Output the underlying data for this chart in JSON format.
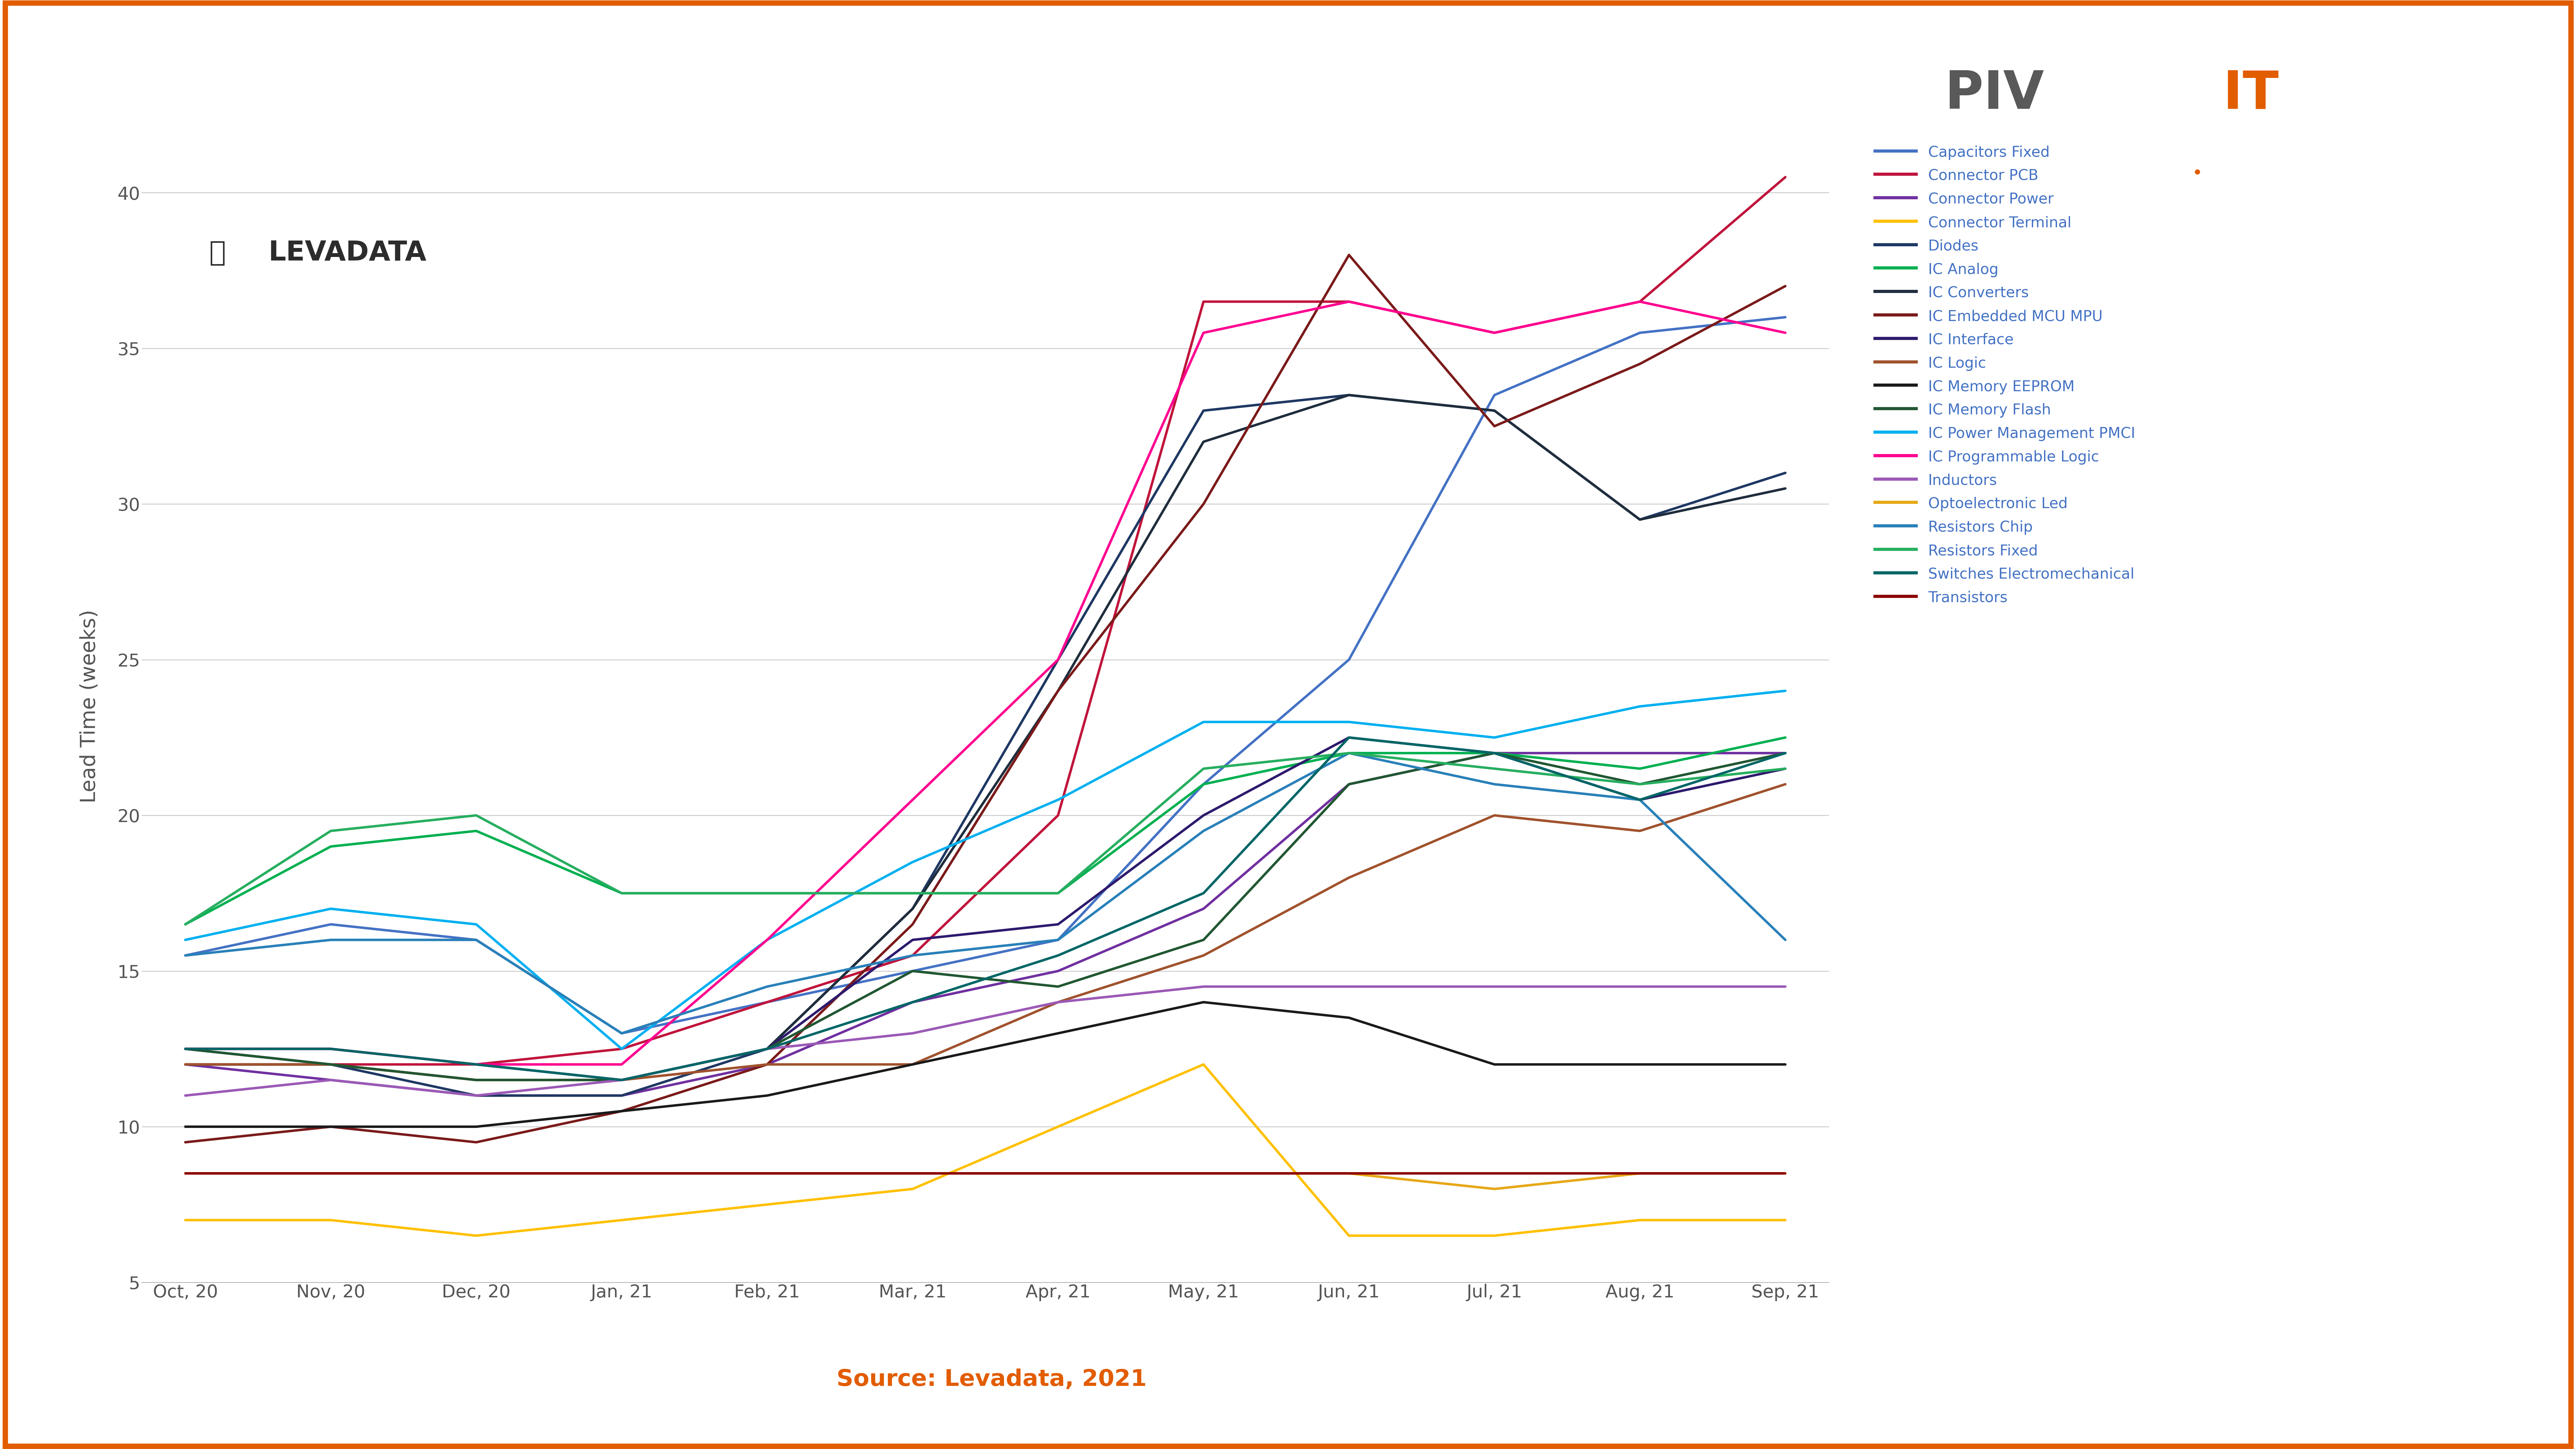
{
  "x_labels": [
    "Oct, 20",
    "Nov, 20",
    "Dec, 20",
    "Jan, 21",
    "Feb, 21",
    "Mar, 21",
    "Apr, 21",
    "May, 21",
    "Jun, 21",
    "Jul, 21",
    "Aug, 21",
    "Sep, 21"
  ],
  "ylabel": "Lead Time (weeks)",
  "ylim": [
    5,
    42
  ],
  "yticks": [
    5,
    10,
    15,
    20,
    25,
    30,
    35,
    40
  ],
  "source_text": "Source: Levadata, 2021",
  "series": [
    {
      "label": "Capacitors Fixed",
      "color": "#4472C4",
      "values": [
        15.5,
        16.5,
        16.0,
        13.0,
        14.0,
        15.0,
        16.0,
        21.0,
        25.0,
        33.5,
        35.5,
        36.0
      ]
    },
    {
      "label": "Connector PCB",
      "color": "#C0143C",
      "values": [
        12.0,
        12.0,
        12.0,
        12.5,
        14.0,
        15.5,
        20.0,
        36.5,
        36.5,
        35.5,
        36.5,
        40.5
      ]
    },
    {
      "label": "Connector Power",
      "color": "#7030A0",
      "values": [
        12.0,
        11.5,
        11.0,
        11.0,
        12.0,
        14.0,
        15.0,
        17.0,
        21.0,
        22.0,
        22.0,
        22.0
      ]
    },
    {
      "label": "Connector Terminal",
      "color": "#FFC000",
      "values": [
        7.0,
        7.0,
        6.5,
        7.0,
        7.5,
        8.0,
        10.0,
        12.0,
        6.5,
        6.5,
        7.0,
        7.0
      ]
    },
    {
      "label": "Diodes",
      "color": "#1F3864",
      "values": [
        12.5,
        12.0,
        11.0,
        11.0,
        12.5,
        17.0,
        25.0,
        33.0,
        33.5,
        33.0,
        29.5,
        31.0
      ]
    },
    {
      "label": "IC Analog",
      "color": "#00B050",
      "values": [
        16.5,
        19.0,
        19.5,
        17.5,
        17.5,
        17.5,
        17.5,
        21.0,
        22.0,
        22.0,
        21.5,
        22.5
      ]
    },
    {
      "label": "IC Converters",
      "color": "#1F2D3D",
      "values": [
        12.0,
        12.0,
        11.5,
        11.5,
        12.5,
        17.0,
        24.0,
        32.0,
        33.5,
        33.0,
        29.5,
        30.5
      ]
    },
    {
      "label": "IC Embedded MCU MPU",
      "color": "#7B1A1A",
      "values": [
        9.5,
        10.0,
        9.5,
        10.5,
        12.0,
        16.5,
        24.0,
        30.0,
        38.0,
        32.5,
        34.5,
        37.0
      ]
    },
    {
      "label": "IC Interface",
      "color": "#2E1A6E",
      "values": [
        12.5,
        12.5,
        12.0,
        11.5,
        12.5,
        16.0,
        16.5,
        20.0,
        22.5,
        22.0,
        20.5,
        21.5
      ]
    },
    {
      "label": "IC Logic",
      "color": "#A0522D",
      "values": [
        12.0,
        12.0,
        11.5,
        11.5,
        12.0,
        12.0,
        14.0,
        15.5,
        18.0,
        20.0,
        19.5,
        21.0
      ]
    },
    {
      "label": "IC Memory EEPROM",
      "color": "#1A1A1A",
      "values": [
        10.0,
        10.0,
        10.0,
        10.5,
        11.0,
        12.0,
        13.0,
        14.0,
        13.5,
        12.0,
        12.0,
        12.0
      ]
    },
    {
      "label": "IC Memory Flash",
      "color": "#215732",
      "values": [
        12.5,
        12.0,
        11.5,
        11.5,
        12.5,
        15.0,
        14.5,
        16.0,
        21.0,
        22.0,
        21.0,
        22.0
      ]
    },
    {
      "label": "IC Power Management PMCI",
      "color": "#00B0F0",
      "values": [
        16.0,
        17.0,
        16.5,
        12.5,
        16.0,
        18.5,
        20.5,
        23.0,
        23.0,
        22.5,
        23.5,
        24.0
      ]
    },
    {
      "label": "IC Programmable Logic",
      "color": "#FF0090",
      "values": [
        12.5,
        12.5,
        12.0,
        12.0,
        16.0,
        20.5,
        25.0,
        35.5,
        36.5,
        35.5,
        36.5,
        35.5
      ]
    },
    {
      "label": "Inductors",
      "color": "#9B59B6",
      "values": [
        11.0,
        11.5,
        11.0,
        11.5,
        12.5,
        13.0,
        14.0,
        14.5,
        14.5,
        14.5,
        14.5,
        14.5
      ]
    },
    {
      "label": "Optoelectronic Led",
      "color": "#E6A817",
      "values": [
        8.5,
        8.5,
        8.5,
        8.5,
        8.5,
        8.5,
        8.5,
        8.5,
        8.5,
        8.0,
        8.5,
        8.5
      ]
    },
    {
      "label": "Resistors Chip",
      "color": "#2980B9",
      "values": [
        15.5,
        16.0,
        16.0,
        13.0,
        14.5,
        15.5,
        16.0,
        19.5,
        22.0,
        21.0,
        20.5,
        16.0
      ]
    },
    {
      "label": "Resistors Fixed",
      "color": "#27AE60",
      "values": [
        16.5,
        19.5,
        20.0,
        17.5,
        17.5,
        17.5,
        17.5,
        21.5,
        22.0,
        21.5,
        21.0,
        21.5
      ]
    },
    {
      "label": "Switches Electromechanical",
      "color": "#006666",
      "values": [
        12.5,
        12.5,
        12.0,
        11.5,
        12.5,
        14.0,
        15.5,
        17.5,
        22.5,
        22.0,
        20.5,
        22.0
      ]
    },
    {
      "label": "Transistors",
      "color": "#8B0000",
      "values": [
        8.5,
        8.5,
        8.5,
        8.5,
        8.5,
        8.5,
        8.5,
        8.5,
        8.5,
        8.5,
        8.5,
        8.5
      ]
    }
  ],
  "legend_text_color": "#4472C4",
  "source_color": "#E25C00",
  "background_color": "#FFFFFF",
  "grid_color": "#CCCCCC",
  "border_color": "#E25C00",
  "pivit_gray": "#595959",
  "pivit_orange": "#E25C00",
  "figsize": [
    80,
    45
  ],
  "dpi": 100
}
